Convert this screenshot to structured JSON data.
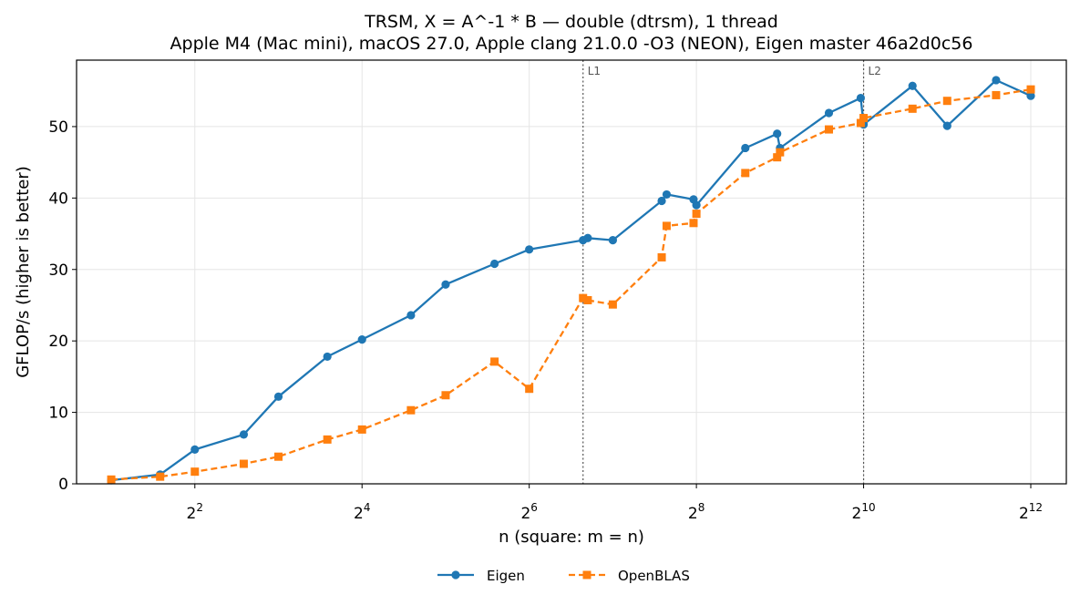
{
  "chart_data": {
    "type": "line",
    "title": "TRSM, X = A^-1 * B — double (dtrsm), 1 thread",
    "subtitle": "Apple M4 (Mac mini), macOS 27.0, Apple clang 21.0.0 -O3 (NEON), Eigen master 46a2d0c56",
    "xlabel": "n (square: m = n)",
    "ylabel": "GFLOP/s (higher is better)",
    "xscale": "log2",
    "xlim": [
      1.5,
      5500
    ],
    "ylim": [
      0,
      59.3
    ],
    "x_ticks": [
      {
        "value": 4,
        "base": "2",
        "exp": "2"
      },
      {
        "value": 16,
        "base": "2",
        "exp": "4"
      },
      {
        "value": 64,
        "base": "2",
        "exp": "6"
      },
      {
        "value": 256,
        "base": "2",
        "exp": "8"
      },
      {
        "value": 1024,
        "base": "2",
        "exp": "10"
      },
      {
        "value": 4096,
        "base": "2",
        "exp": "12"
      }
    ],
    "y_ticks": [
      0,
      10,
      20,
      30,
      40,
      50
    ],
    "grid": true,
    "legend_placement": "bottom-center",
    "reference_lines": [
      {
        "label": "L1",
        "x": 100
      },
      {
        "label": "L2",
        "x": 1024
      }
    ],
    "series": [
      {
        "name": "Eigen",
        "color": "#1f77b4",
        "marker": "circle",
        "linestyle": "solid",
        "x": [
          2,
          3,
          4,
          6,
          8,
          12,
          16,
          24,
          32,
          48,
          64,
          100,
          104,
          128,
          192,
          200,
          250,
          256,
          384,
          500,
          512,
          768,
          1000,
          1024,
          1536,
          2048,
          3072,
          4096
        ],
        "y": [
          0.5,
          1.3,
          4.8,
          6.9,
          12.2,
          17.8,
          20.2,
          23.6,
          27.9,
          30.8,
          32.8,
          34.1,
          34.4,
          34.1,
          39.6,
          40.5,
          39.8,
          39.0,
          47.0,
          49.0,
          47.0,
          51.9,
          54.0,
          50.3,
          55.7,
          50.1,
          56.5,
          54.3
        ]
      },
      {
        "name": "OpenBLAS",
        "color": "#ff7f0e",
        "marker": "square",
        "linestyle": "dashed",
        "x": [
          2,
          3,
          4,
          6,
          8,
          12,
          16,
          24,
          32,
          48,
          64,
          100,
          104,
          128,
          192,
          200,
          250,
          256,
          384,
          500,
          512,
          768,
          1000,
          1024,
          1536,
          2048,
          3072,
          4096
        ],
        "y": [
          0.6,
          1.0,
          1.7,
          2.8,
          3.8,
          6.2,
          7.6,
          10.3,
          12.4,
          17.1,
          13.3,
          26.0,
          25.7,
          25.1,
          31.7,
          36.1,
          36.5,
          37.8,
          43.5,
          45.7,
          46.4,
          49.6,
          50.5,
          51.2,
          52.5,
          53.6,
          54.4,
          55.2
        ]
      }
    ]
  }
}
